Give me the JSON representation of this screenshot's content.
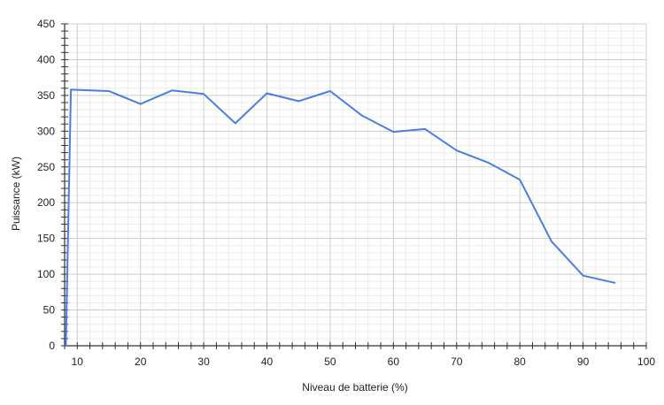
{
  "chart_data": {
    "type": "line",
    "title": "",
    "xlabel": "Niveau de batterie (%)",
    "ylabel": "Puissance (kW)",
    "xlim": [
      8,
      100
    ],
    "ylim": [
      0,
      450
    ],
    "x_ticks": [
      10,
      20,
      30,
      40,
      50,
      60,
      70,
      80,
      90,
      100
    ],
    "y_ticks": [
      0,
      50,
      100,
      150,
      200,
      250,
      300,
      350,
      400,
      450
    ],
    "grid": true,
    "legend": "none",
    "series": [
      {
        "color": "#4a7fe0",
        "points": [
          {
            "x": 8.2,
            "y": 0
          },
          {
            "x": 9,
            "y": 358
          },
          {
            "x": 15,
            "y": 356
          },
          {
            "x": 20,
            "y": 338
          },
          {
            "x": 25,
            "y": 357
          },
          {
            "x": 30,
            "y": 352
          },
          {
            "x": 35,
            "y": 311
          },
          {
            "x": 40,
            "y": 353
          },
          {
            "x": 45,
            "y": 342
          },
          {
            "x": 50,
            "y": 356
          },
          {
            "x": 55,
            "y": 322
          },
          {
            "x": 60,
            "y": 299
          },
          {
            "x": 65,
            "y": 303
          },
          {
            "x": 70,
            "y": 273
          },
          {
            "x": 75,
            "y": 256
          },
          {
            "x": 80,
            "y": 232
          },
          {
            "x": 85,
            "y": 146
          },
          {
            "x": 90,
            "y": 98
          },
          {
            "x": 95,
            "y": 88
          }
        ]
      }
    ]
  }
}
